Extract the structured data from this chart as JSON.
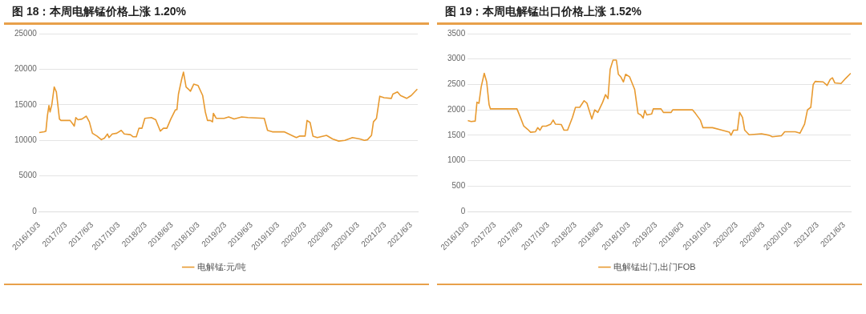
{
  "chart_data": [
    {
      "type": "line",
      "title": "图 18：本周电解锰价格上涨 1.20%",
      "grid": "y",
      "legend": "bottom",
      "marker": "none",
      "line_style": "solid",
      "xlim": [
        "2016-10-03",
        "2021-07-03"
      ],
      "xticks": [
        {
          "value": "2016-10-03",
          "label": "2016/10/3"
        },
        {
          "value": "2017-02-03",
          "label": "2017/2/3"
        },
        {
          "value": "2017-06-03",
          "label": "2017/6/3"
        },
        {
          "value": "2017-10-03",
          "label": "2017/10/3"
        },
        {
          "value": "2018-02-03",
          "label": "2018/2/3"
        },
        {
          "value": "2018-06-03",
          "label": "2018/6/3"
        },
        {
          "value": "2018-10-03",
          "label": "2018/10/3"
        },
        {
          "value": "2019-02-03",
          "label": "2019/2/3"
        },
        {
          "value": "2019-06-03",
          "label": "2019/6/3"
        },
        {
          "value": "2019-10-03",
          "label": "2019/10/3"
        },
        {
          "value": "2020-02-03",
          "label": "2020/2/3"
        },
        {
          "value": "2020-06-03",
          "label": "2020/6/3"
        },
        {
          "value": "2020-10-03",
          "label": "2020/10/3"
        },
        {
          "value": "2021-02-03",
          "label": "2021/2/3"
        },
        {
          "value": "2021-06-03",
          "label": "2021/6/3"
        }
      ],
      "ylim": [
        0,
        25000
      ],
      "yticks": [
        0,
        5000,
        10000,
        15000,
        20000,
        25000
      ],
      "series": [
        {
          "name": "电解锰:元/吨",
          "color": "#e89a30",
          "x": [
            "2016-10-03",
            "2016-10-26",
            "2016-11-03",
            "2016-11-10",
            "2016-11-17",
            "2016-11-22",
            "2016-11-30",
            "2016-12-11",
            "2016-12-21",
            "2017-01-04",
            "2017-01-11",
            "2017-02-22",
            "2017-03-06",
            "2017-03-13",
            "2017-03-20",
            "2017-03-30",
            "2017-04-17",
            "2017-05-07",
            "2017-05-21",
            "2017-06-04",
            "2017-06-25",
            "2017-07-15",
            "2017-07-29",
            "2017-08-12",
            "2017-08-19",
            "2017-09-03",
            "2017-09-23",
            "2017-10-14",
            "2017-10-28",
            "2017-11-25",
            "2017-12-08",
            "2017-12-22",
            "2018-01-03",
            "2018-01-17",
            "2018-01-30",
            "2018-03-01",
            "2018-03-21",
            "2018-04-11",
            "2018-04-25",
            "2018-05-11",
            "2018-05-29",
            "2018-06-19",
            "2018-06-26",
            "2018-07-03",
            "2018-07-17",
            "2018-07-26",
            "2018-08-07",
            "2018-08-18",
            "2018-08-27",
            "2018-09-11",
            "2018-10-01",
            "2018-10-22",
            "2018-11-03",
            "2018-11-13",
            "2018-11-26",
            "2018-12-06",
            "2018-12-10",
            "2018-12-23",
            "2019-01-28",
            "2019-02-18",
            "2019-03-15",
            "2019-04-19",
            "2019-05-17",
            "2019-07-31",
            "2019-08-15",
            "2019-09-06",
            "2019-10-30",
            "2019-12-11",
            "2019-12-25",
            "2020-01-08",
            "2020-02-03",
            "2020-02-12",
            "2020-02-26",
            "2020-03-10",
            "2020-03-30",
            "2020-05-11",
            "2020-06-08",
            "2020-07-06",
            "2020-08-03",
            "2020-09-07",
            "2020-10-11",
            "2020-11-01",
            "2020-11-15",
            "2020-12-03",
            "2020-12-12",
            "2020-12-26",
            "2021-01-10",
            "2021-01-30",
            "2021-03-04",
            "2021-03-11",
            "2021-04-01",
            "2021-04-15",
            "2021-05-13",
            "2021-06-03",
            "2021-07-01"
          ],
          "values": [
            11100,
            11200,
            11300,
            13500,
            14900,
            14000,
            15000,
            17500,
            16800,
            13000,
            12800,
            12800,
            12300,
            12000,
            13200,
            12900,
            13000,
            13400,
            12600,
            11000,
            10600,
            10100,
            10300,
            10900,
            10400,
            10900,
            11000,
            11400,
            10900,
            10800,
            10500,
            10500,
            11700,
            11700,
            13100,
            13200,
            12900,
            11300,
            11700,
            11700,
            13000,
            14300,
            14300,
            16500,
            18500,
            19600,
            17500,
            17200,
            16900,
            17900,
            17700,
            16300,
            14000,
            12800,
            12800,
            12600,
            13800,
            13100,
            13100,
            13300,
            13000,
            13300,
            13200,
            13100,
            11400,
            11200,
            11200,
            10600,
            10400,
            10600,
            10600,
            12800,
            12500,
            10600,
            10400,
            10700,
            10200,
            9900,
            10000,
            10400,
            10200,
            10000,
            10100,
            10700,
            12600,
            13100,
            16200,
            16000,
            15900,
            16500,
            16800,
            16300,
            15900,
            16300,
            17200
          ]
        }
      ]
    },
    {
      "type": "line",
      "title": "图 19：本周电解锰出口价格上涨 1.52%",
      "grid": "y",
      "legend": "bottom",
      "marker": "none",
      "line_style": "solid",
      "xlim": [
        "2016-10-03",
        "2021-07-03"
      ],
      "xticks": [
        {
          "value": "2016-10-03",
          "label": "2016/10/3"
        },
        {
          "value": "2017-02-03",
          "label": "2017/2/3"
        },
        {
          "value": "2017-06-03",
          "label": "2017/6/3"
        },
        {
          "value": "2017-10-03",
          "label": "2017/10/3"
        },
        {
          "value": "2018-02-03",
          "label": "2018/2/3"
        },
        {
          "value": "2018-06-03",
          "label": "2018/6/3"
        },
        {
          "value": "2018-10-03",
          "label": "2018/10/3"
        },
        {
          "value": "2019-02-03",
          "label": "2019/2/3"
        },
        {
          "value": "2019-06-03",
          "label": "2019/6/3"
        },
        {
          "value": "2019-10-03",
          "label": "2019/10/3"
        },
        {
          "value": "2020-02-03",
          "label": "2020/2/3"
        },
        {
          "value": "2020-06-03",
          "label": "2020/6/3"
        },
        {
          "value": "2020-10-03",
          "label": "2020/10/3"
        },
        {
          "value": "2021-02-03",
          "label": "2021/2/3"
        },
        {
          "value": "2021-06-03",
          "label": "2021/6/3"
        }
      ],
      "ylim": [
        0,
        3500
      ],
      "yticks": [
        0,
        500,
        1000,
        1500,
        2000,
        2500,
        3000,
        3500
      ],
      "series": [
        {
          "name": "电解锰出门,出门FOB",
          "color": "#e89a30",
          "x": [
            "2016-10-03",
            "2016-10-19",
            "2016-11-06",
            "2016-11-14",
            "2016-11-23",
            "2016-12-03",
            "2016-12-17",
            "2016-12-28",
            "2017-01-08",
            "2017-01-14",
            "2017-05-14",
            "2017-05-28",
            "2017-06-14",
            "2017-07-01",
            "2017-07-15",
            "2017-08-06",
            "2017-08-16",
            "2017-08-26",
            "2017-09-06",
            "2017-09-23",
            "2017-10-14",
            "2017-10-25",
            "2017-11-04",
            "2017-12-01",
            "2017-12-13",
            "2017-12-29",
            "2018-01-20",
            "2018-02-03",
            "2018-02-22",
            "2018-03-14",
            "2018-03-27",
            "2018-04-18",
            "2018-05-01",
            "2018-05-15",
            "2018-06-06",
            "2018-06-19",
            "2018-06-30",
            "2018-07-10",
            "2018-07-23",
            "2018-08-07",
            "2018-08-16",
            "2018-08-27",
            "2018-09-08",
            "2018-09-18",
            "2018-10-06",
            "2018-10-29",
            "2018-11-13",
            "2018-11-26",
            "2018-12-06",
            "2018-12-14",
            "2018-12-23",
            "2019-01-14",
            "2019-01-21",
            "2019-02-25",
            "2019-03-08",
            "2019-04-12",
            "2019-04-19",
            "2019-07-18",
            "2019-07-31",
            "2019-08-22",
            "2019-09-03",
            "2019-10-16",
            "2019-11-28",
            "2020-01-01",
            "2020-01-08",
            "2020-01-19",
            "2020-02-06",
            "2020-02-16",
            "2020-02-29",
            "2020-03-10",
            "2020-03-30",
            "2020-05-25",
            "2020-06-29",
            "2020-07-13",
            "2020-08-23",
            "2020-09-07",
            "2020-10-25",
            "2020-11-15",
            "2020-12-06",
            "2020-12-19",
            "2021-01-03",
            "2021-01-14",
            "2021-01-23",
            "2021-02-28",
            "2021-03-18",
            "2021-04-01",
            "2021-04-11",
            "2021-04-22",
            "2021-05-20",
            "2021-06-10",
            "2021-07-03"
          ],
          "values": [
            1790,
            1770,
            1780,
            2150,
            2130,
            2450,
            2720,
            2550,
            2100,
            2020,
            2020,
            1870,
            1680,
            1620,
            1560,
            1570,
            1650,
            1600,
            1680,
            1680,
            1720,
            1800,
            1720,
            1710,
            1600,
            1600,
            1850,
            2050,
            2050,
            2180,
            2130,
            1820,
            2000,
            1950,
            2150,
            2300,
            2220,
            2800,
            2980,
            2980,
            2700,
            2650,
            2550,
            2700,
            2650,
            2400,
            1930,
            1900,
            1840,
            1990,
            1900,
            1920,
            2020,
            2020,
            1950,
            1950,
            2000,
            2000,
            1930,
            1800,
            1650,
            1650,
            1600,
            1560,
            1500,
            1600,
            1600,
            1950,
            1850,
            1600,
            1510,
            1530,
            1500,
            1470,
            1490,
            1570,
            1570,
            1540,
            1720,
            2000,
            2050,
            2500,
            2560,
            2550,
            2480,
            2600,
            2630,
            2530,
            2520,
            2620,
            2720
          ]
        }
      ]
    }
  ]
}
